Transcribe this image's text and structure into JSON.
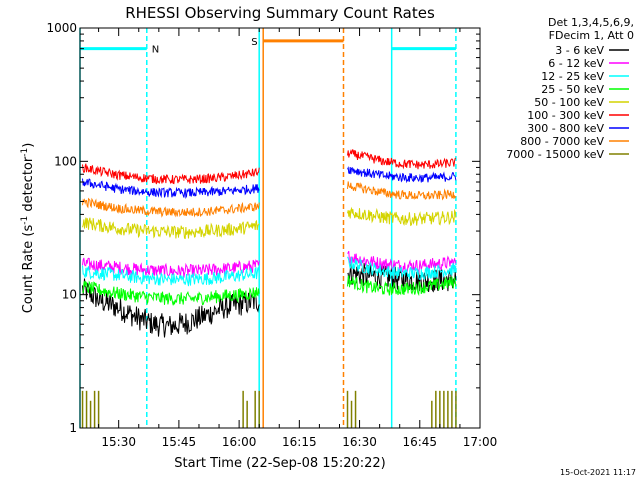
{
  "chart_data": {
    "type": "line",
    "title": "RHESSI Observing Summary Count Rates",
    "xlabel": "Start Time (22-Sep-08 15:20:22)",
    "ylabel_main": "Count Rate (s",
    "ylabel_sup1": "-1",
    "ylabel_mid": " detector",
    "ylabel_sup2": "-1",
    "ylabel_end": ")",
    "yscale": "log",
    "ylim": [
      1,
      1000
    ],
    "xlim": [
      "15:20:22",
      "17:00:00"
    ],
    "y_ticks": [
      {
        "v": 1,
        "label": "1"
      },
      {
        "v": 10,
        "label": "10"
      },
      {
        "v": 100,
        "label": "100"
      },
      {
        "v": 1000,
        "label": "1000"
      }
    ],
    "x_ticks": [
      {
        "t": "15:30",
        "label": "15:30"
      },
      {
        "t": "15:45",
        "label": "15:45"
      },
      {
        "t": "16:00",
        "label": "16:00"
      },
      {
        "t": "16:15",
        "label": "16:15"
      },
      {
        "t": "16:30",
        "label": "16:30"
      },
      {
        "t": "16:45",
        "label": "16:45"
      },
      {
        "t": "17:00",
        "label": "17:00"
      }
    ],
    "legend_header": [
      "Det 1,3,4,5,6,9,",
      "FDecim 1, Att 0"
    ],
    "series": [
      {
        "name": "3 - 6 keV",
        "color": "#000000",
        "segments": [
          {
            "start": "15:21",
            "end": "16:05",
            "v": [
              11,
              9,
              8,
              6.8,
              6,
              5.8,
              6.2,
              7,
              8,
              8.5,
              9
            ]
          },
          {
            "start": "16:27",
            "end": "16:54",
            "v": [
              14.5,
              14,
              13.5,
              13,
              12.8,
              12.8,
              13
            ]
          }
        ]
      },
      {
        "name": "6 - 12 keV",
        "color": "#ff00ff",
        "segments": [
          {
            "start": "15:21",
            "end": "16:05",
            "v": [
              17,
              16.5,
              16,
              15.5,
              15.2,
              15,
              15,
              15.2,
              15.6,
              16,
              16.5
            ]
          },
          {
            "start": "16:27",
            "end": "16:54",
            "v": [
              19.5,
              18,
              17,
              16.5,
              16.5,
              17,
              17.5
            ]
          }
        ]
      },
      {
        "name": "12 - 25 keV",
        "color": "#00ffff",
        "segments": [
          {
            "start": "15:21",
            "end": "16:05",
            "v": [
              15,
              14.5,
              14,
              13.5,
              13.2,
              13,
              13,
              13.2,
              13.5,
              14,
              14.5
            ]
          },
          {
            "start": "16:27",
            "end": "16:54",
            "v": [
              17.5,
              16,
              15,
              14.5,
              14.5,
              15,
              15.5
            ]
          }
        ]
      },
      {
        "name": "25 - 50 keV",
        "color": "#00ff00",
        "segments": [
          {
            "start": "15:21",
            "end": "16:05",
            "v": [
              11.5,
              10.8,
              10.2,
              9.8,
              9.5,
              9.3,
              9.3,
              9.5,
              9.8,
              10,
              10.5
            ]
          },
          {
            "start": "16:27",
            "end": "16:54",
            "v": [
              12.8,
              11.5,
              11,
              11,
              11.3,
              11.8,
              12.5
            ]
          }
        ]
      },
      {
        "name": "50 - 100 keV",
        "color": "#d4d400",
        "segments": [
          {
            "start": "15:21",
            "end": "16:05",
            "v": [
              35,
              33,
              31.5,
              30.5,
              30,
              29.5,
              29.5,
              30,
              30.5,
              31.5,
              33
            ]
          },
          {
            "start": "16:27",
            "end": "16:54",
            "v": [
              42,
              40,
              38,
              37,
              37,
              37.5,
              38.5
            ]
          }
        ]
      },
      {
        "name": "100 - 300 keV",
        "color": "#ff0000",
        "segments": [
          {
            "start": "15:21",
            "end": "16:05",
            "v": [
              90,
              84,
              79,
              76,
              74,
              73,
              73,
              74,
              76,
              79,
              83
            ]
          },
          {
            "start": "16:27",
            "end": "16:54",
            "v": [
              115,
              108,
              100,
              96,
              94,
              95,
              98
            ]
          }
        ]
      },
      {
        "name": "300 - 800 keV",
        "color": "#0000ff",
        "segments": [
          {
            "start": "15:21",
            "end": "16:05",
            "v": [
              70,
              66,
              62,
              60,
              58.5,
              58,
              58,
              58.5,
              59.5,
              61,
              63
            ]
          },
          {
            "start": "16:27",
            "end": "16:54",
            "v": [
              88,
              82,
              78,
              76,
              75,
              75.5,
              77
            ]
          }
        ]
      },
      {
        "name": "800 - 7000 keV",
        "color": "#ff8000",
        "segments": [
          {
            "start": "15:21",
            "end": "16:05",
            "v": [
              50,
              47,
              44.5,
              43,
              42,
              41.5,
              41.5,
              42,
              43,
              44.5,
              46
            ]
          },
          {
            "start": "16:27",
            "end": "16:54",
            "v": [
              66,
              62,
              58,
              56,
              55,
              55.5,
              57
            ]
          }
        ]
      },
      {
        "name": "7000 - 15000 keV",
        "color": "#808000",
        "segments": [
          {
            "start": "15:21",
            "end": "16:05",
            "v": [
              1,
              1,
              1,
              1,
              1,
              1,
              1,
              1,
              1,
              1,
              1
            ]
          },
          {
            "start": "16:27",
            "end": "16:54",
            "v": [
              1,
              1,
              1,
              1,
              1,
              1,
              1
            ]
          }
        ]
      }
    ],
    "bursts_7000": [
      {
        "t": "15:21",
        "h": 1.9
      },
      {
        "t": "15:22",
        "h": 1.9
      },
      {
        "t": "15:23",
        "h": 1.6
      },
      {
        "t": "15:24",
        "h": 1.9
      },
      {
        "t": "15:25",
        "h": 1.9
      },
      {
        "t": "16:01",
        "h": 1.9
      },
      {
        "t": "16:02",
        "h": 1.6
      },
      {
        "t": "16:04",
        "h": 1.9
      },
      {
        "t": "16:05",
        "h": 1.9
      },
      {
        "t": "16:27",
        "h": 1.9
      },
      {
        "t": "16:28",
        "h": 1.6
      },
      {
        "t": "16:29",
        "h": 1.9
      },
      {
        "t": "16:48",
        "h": 1.6
      },
      {
        "t": "16:49",
        "h": 1.9
      },
      {
        "t": "16:50",
        "h": 1.9
      },
      {
        "t": "16:51",
        "h": 1.9
      },
      {
        "t": "16:52",
        "h": 1.9
      },
      {
        "t": "16:53",
        "h": 1.9
      },
      {
        "t": "16:54",
        "h": 1.9
      }
    ],
    "night_bars": [
      {
        "label": "N",
        "start": "15:20:22",
        "end": "15:37",
        "v": 700,
        "color": "#00ffff"
      },
      {
        "label": "",
        "start": "16:38",
        "end": "16:54",
        "v": 700,
        "color": "#00ffff"
      }
    ],
    "saa_bars": [
      {
        "label": "S",
        "start": "16:06",
        "end": "16:26",
        "v": 800,
        "color": "#ff8000"
      }
    ],
    "vlines": [
      {
        "t": "15:20:22",
        "color": "#00ffff",
        "dash": false
      },
      {
        "t": "15:37",
        "color": "#00ffff",
        "dash": true
      },
      {
        "t": "16:05",
        "color": "#00ffff",
        "dash": false
      },
      {
        "t": "16:38",
        "color": "#00ffff",
        "dash": false
      },
      {
        "t": "16:54",
        "color": "#00ffff",
        "dash": true
      },
      {
        "t": "16:06",
        "color": "#ff8000",
        "dash": false
      },
      {
        "t": "16:26",
        "color": "#ff8000",
        "dash": true
      }
    ],
    "footer": "15-Oct-2021 11:17"
  }
}
